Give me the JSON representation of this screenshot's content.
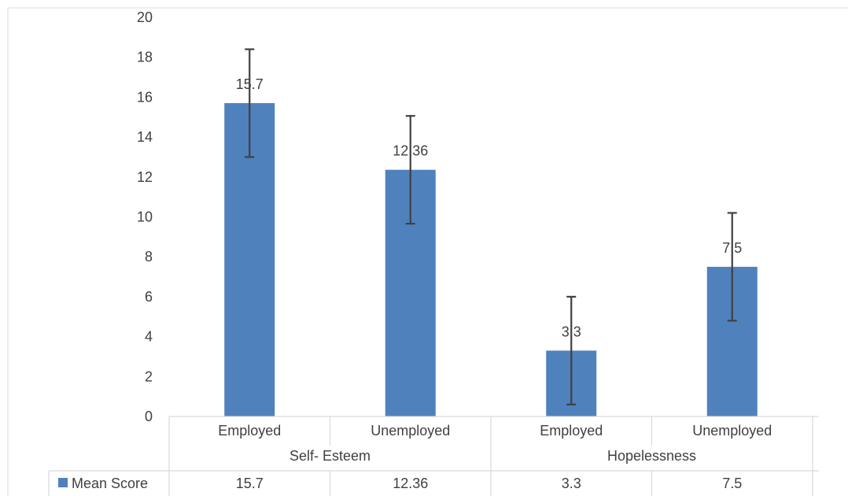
{
  "chart_data": {
    "type": "bar",
    "categories": [
      "Employed",
      "Unemployed",
      "Employed",
      "Unemployed"
    ],
    "groups": [
      {
        "label": "Self- Esteem",
        "span": [
          0,
          1
        ]
      },
      {
        "label": "Hopelessness",
        "span": [
          2,
          3
        ]
      }
    ],
    "series": [
      {
        "name": "Mean Score",
        "values": [
          15.7,
          12.36,
          3.3,
          7.5
        ],
        "error_low": [
          13.0,
          9.66,
          0.6,
          4.8
        ],
        "error_high": [
          18.4,
          15.06,
          6.0,
          10.2
        ],
        "data_labels": [
          "15.7",
          "12.36",
          "3.3",
          "7.5"
        ],
        "table_values": [
          "15.7",
          "12.36",
          "3.3",
          "7.5"
        ],
        "color": "#4f81bd"
      }
    ],
    "yticks": [
      "0",
      "2",
      "4",
      "6",
      "8",
      "10",
      "12",
      "14",
      "16",
      "18",
      "20"
    ],
    "ylim": [
      0,
      20
    ],
    "grid": false,
    "legend": "data-table",
    "colors": {
      "bar": "#4f81bd",
      "error_bar": "#404040",
      "border": "#d9d9d9",
      "text": "#404040"
    }
  }
}
